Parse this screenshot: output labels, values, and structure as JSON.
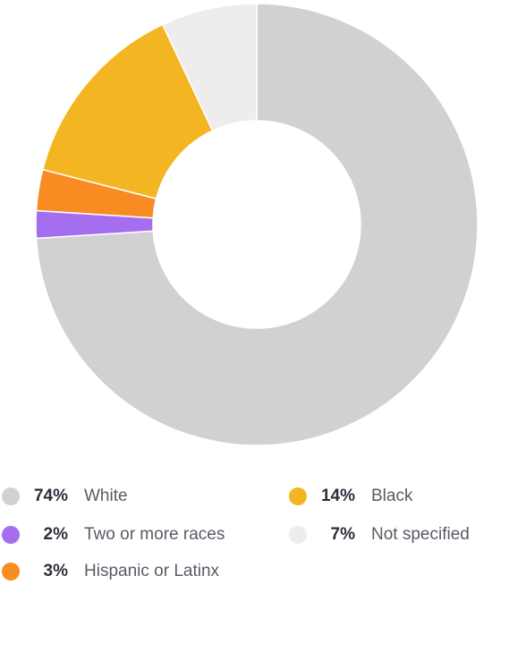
{
  "chart_data": {
    "type": "pie",
    "donut": true,
    "title": "",
    "slices": [
      {
        "label": "White",
        "value": 74,
        "display": "74%",
        "color": "#d1d1d3"
      },
      {
        "label": "Two or more races",
        "value": 2,
        "display": "2%",
        "color": "#a56ef0"
      },
      {
        "label": "Hispanic or Latinx",
        "value": 3,
        "display": "3%",
        "color": "#f88b22"
      },
      {
        "label": "Black",
        "value": 14,
        "display": "14%",
        "color": "#f3b622"
      },
      {
        "label": "Not specified",
        "value": 7,
        "display": "7%",
        "color": "#ededee"
      }
    ],
    "slice_order_clockwise_from_top": [
      "White",
      "Two or more races",
      "Hispanic or Latinx",
      "Black",
      "Not specified"
    ],
    "legend_placement": "bottom"
  }
}
